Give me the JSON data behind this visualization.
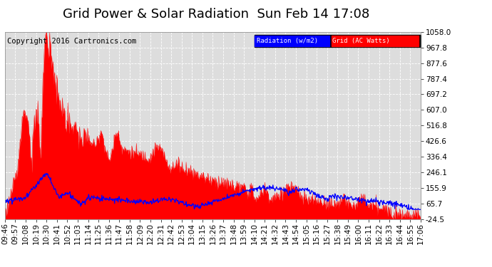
{
  "title": "Grid Power & Solar Radiation  Sun Feb 14 17:08",
  "copyright": "Copyright 2016 Cartronics.com",
  "legend_labels": [
    "Radiation (w/m2)",
    "Grid (AC Watts)"
  ],
  "yticks": [
    1058.0,
    967.8,
    877.6,
    787.4,
    697.2,
    607.0,
    516.8,
    426.6,
    336.4,
    246.1,
    155.9,
    65.7,
    -24.5
  ],
  "xtick_labels": [
    "09:46",
    "09:57",
    "10:08",
    "10:19",
    "10:30",
    "10:41",
    "10:52",
    "11:03",
    "11:14",
    "11:25",
    "11:36",
    "11:47",
    "11:58",
    "12:09",
    "12:20",
    "12:31",
    "12:42",
    "12:53",
    "13:04",
    "13:15",
    "13:26",
    "13:37",
    "13:48",
    "13:59",
    "14:10",
    "14:21",
    "14:32",
    "14:43",
    "14:54",
    "15:05",
    "15:16",
    "15:27",
    "15:38",
    "15:49",
    "16:00",
    "16:11",
    "16:22",
    "16:33",
    "16:44",
    "16:55",
    "17:06"
  ],
  "ymin": -24.5,
  "ymax": 1058.0,
  "bg_color": "#ffffff",
  "plot_bg_color": "#dddddd",
  "grid_color": "#bbbbbb",
  "title_fontsize": 13,
  "copyright_fontsize": 7.5,
  "tick_fontsize": 7.5
}
